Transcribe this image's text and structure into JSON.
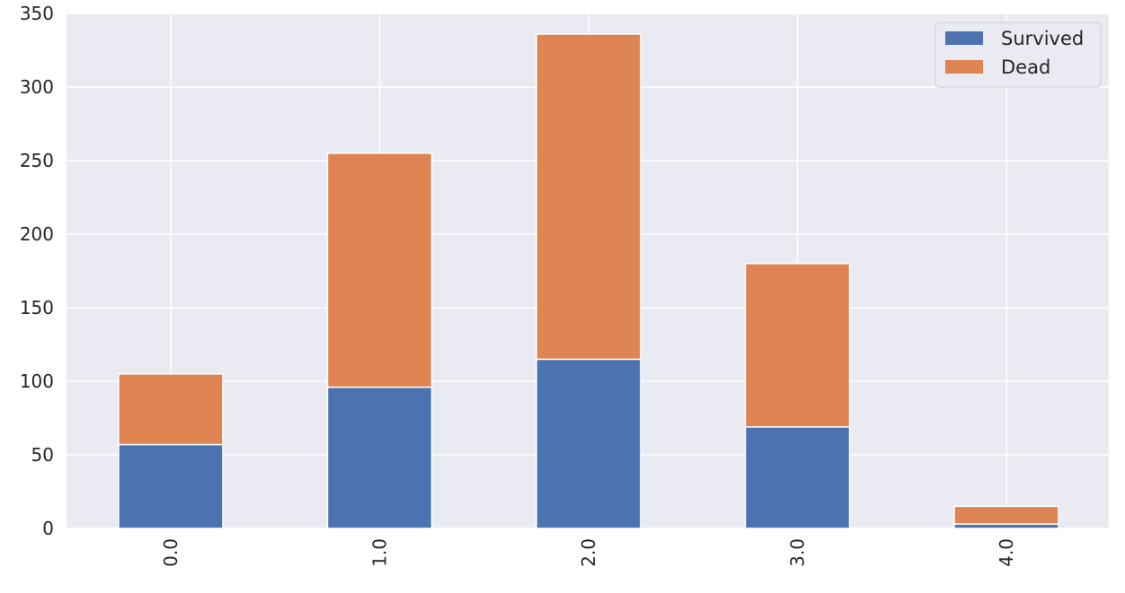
{
  "chart_data": {
    "type": "bar",
    "stacked": true,
    "categories": [
      "0.0",
      "1.0",
      "2.0",
      "3.0",
      "4.0"
    ],
    "series": [
      {
        "name": "Survived",
        "values": [
          57,
          96,
          115,
          69,
          3
        ]
      },
      {
        "name": "Dead",
        "values": [
          48,
          159,
          221,
          111,
          12
        ]
      }
    ],
    "colors": {
      "Survived": "#4c72b0",
      "Dead": "#dd8452"
    },
    "title": "",
    "xlabel": "",
    "ylabel": "",
    "ylim": [
      0,
      350
    ],
    "yticks": [
      "0",
      "50",
      "100",
      "150",
      "200",
      "250",
      "300",
      "350"
    ],
    "x_tick_rotation": "vertical",
    "grid": true,
    "legend_position": "top-right",
    "background": "#eaeaf2"
  }
}
